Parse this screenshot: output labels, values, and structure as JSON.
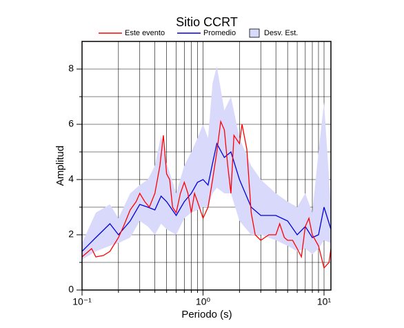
{
  "chart_data": {
    "type": "line",
    "title": "Sitio CCRT",
    "xlabel": "Periodo (s)",
    "ylabel": "Amplitud",
    "xscale": "log",
    "xlim": [
      0.1,
      11.4
    ],
    "ylim": [
      0,
      9
    ],
    "xticks": [
      {
        "value": 0.1,
        "label": "10⁻¹"
      },
      {
        "value": 1,
        "label": "10⁰"
      },
      {
        "value": 10,
        "label": "10¹"
      }
    ],
    "xminor": [
      0.2,
      0.3,
      0.4,
      0.5,
      0.6,
      0.7,
      0.8,
      0.9,
      2,
      3,
      4,
      5,
      6,
      7,
      8,
      9
    ],
    "yticks": [
      0,
      2,
      4,
      6,
      8
    ],
    "yminor": [
      1,
      3,
      5,
      7
    ],
    "grid": true,
    "series": [
      {
        "name": "Este evento",
        "color": "#ff0000",
        "x": [
          0.1,
          0.12,
          0.13,
          0.15,
          0.17,
          0.2,
          0.22,
          0.25,
          0.28,
          0.3,
          0.33,
          0.36,
          0.4,
          0.44,
          0.47,
          0.5,
          0.53,
          0.56,
          0.6,
          0.65,
          0.7,
          0.75,
          0.8,
          0.85,
          0.9,
          1.0,
          1.1,
          1.2,
          1.3,
          1.4,
          1.5,
          1.6,
          1.7,
          1.8,
          2.0,
          2.1,
          2.3,
          2.5,
          2.7,
          3.0,
          3.5,
          4.0,
          4.3,
          4.7,
          5.0,
          5.5,
          6.0,
          6.5,
          7.0,
          7.5,
          8.0,
          9.0,
          10,
          11,
          11.4
        ],
        "values": [
          1.2,
          1.5,
          1.2,
          1.25,
          1.4,
          1.9,
          2.3,
          2.9,
          3.2,
          3.5,
          3.2,
          3.0,
          3.5,
          4.5,
          5.6,
          4.2,
          4.0,
          3.0,
          2.8,
          3.5,
          3.9,
          3.5,
          2.8,
          3.5,
          3.2,
          2.6,
          3.0,
          4.0,
          5.0,
          6.1,
          5.8,
          4.5,
          3.5,
          5.6,
          5.3,
          6.0,
          5.1,
          2.8,
          2.0,
          1.8,
          2.0,
          2.0,
          2.4,
          1.9,
          1.8,
          1.8,
          1.5,
          1.2,
          2.3,
          2.6,
          2.0,
          1.6,
          0.8,
          1.0,
          1.5
        ]
      },
      {
        "name": "Promedio",
        "color": "#0000dd",
        "x": [
          0.1,
          0.13,
          0.17,
          0.2,
          0.25,
          0.3,
          0.35,
          0.4,
          0.45,
          0.5,
          0.6,
          0.7,
          0.8,
          0.9,
          1.0,
          1.1,
          1.2,
          1.3,
          1.5,
          1.7,
          2.0,
          2.5,
          3.0,
          4.0,
          5.0,
          6.0,
          7.0,
          8.0,
          9.0,
          10,
          11.4
        ],
        "values": [
          1.4,
          1.9,
          2.4,
          2.0,
          2.5,
          3.1,
          3.0,
          2.9,
          3.4,
          3.2,
          2.7,
          3.2,
          3.5,
          3.9,
          4.0,
          3.8,
          4.6,
          5.3,
          4.8,
          5.0,
          4.0,
          3.0,
          2.7,
          2.7,
          2.5,
          2.0,
          2.3,
          1.9,
          2.0,
          3.0,
          2.2
        ]
      },
      {
        "name": "Desv. Est.",
        "color": "#d9d9fb",
        "x": [
          0.1,
          0.13,
          0.17,
          0.2,
          0.25,
          0.3,
          0.35,
          0.4,
          0.45,
          0.5,
          0.6,
          0.7,
          0.8,
          0.9,
          1.0,
          1.1,
          1.2,
          1.3,
          1.5,
          1.7,
          2.0,
          2.5,
          3.0,
          4.0,
          5.0,
          6.0,
          7.0,
          8.0,
          9.0,
          10,
          11.4
        ],
        "lower": [
          1.1,
          1.4,
          1.6,
          1.7,
          1.9,
          2.5,
          2.3,
          2.0,
          2.4,
          2.2,
          2.0,
          2.6,
          2.8,
          2.9,
          3.0,
          3.0,
          3.5,
          3.7,
          3.5,
          3.5,
          2.5,
          2.0,
          2.0,
          1.8,
          1.6,
          1.4,
          1.5,
          1.3,
          1.5,
          1.8,
          1.7
        ],
        "upper": [
          1.7,
          2.8,
          3.1,
          2.6,
          3.5,
          3.8,
          4.0,
          4.5,
          5.6,
          4.6,
          3.5,
          4.5,
          5.0,
          5.5,
          6.0,
          5.5,
          7.5,
          8.1,
          6.5,
          7.0,
          5.5,
          4.5,
          4.0,
          3.5,
          3.2,
          3.0,
          3.5,
          2.8,
          5.0,
          6.8,
          3.0
        ]
      }
    ]
  }
}
